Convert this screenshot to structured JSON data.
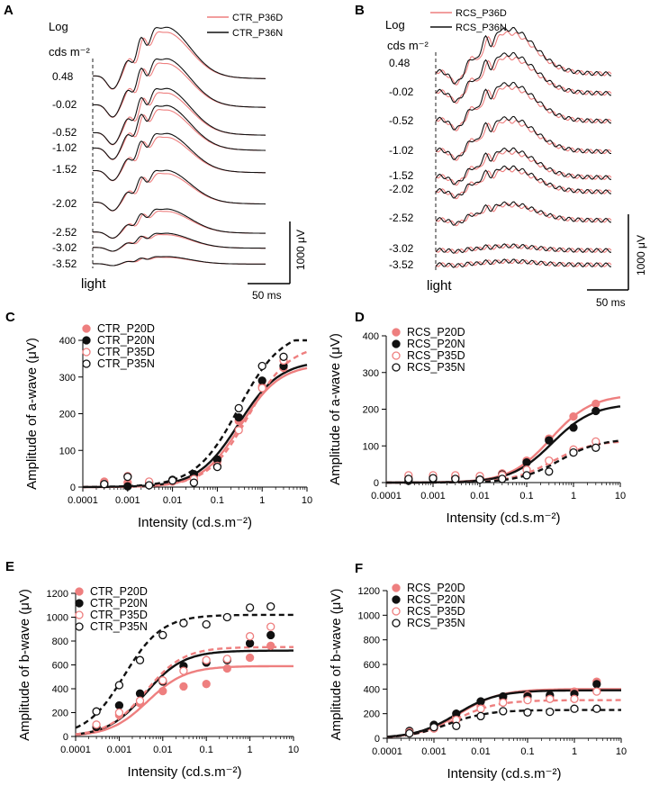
{
  "colors": {
    "pink": "#ee7f7f",
    "black": "#111111"
  },
  "trace_panels": [
    {
      "letter": "A",
      "unit_line1": "Log",
      "unit_line2": "cds m⁻²",
      "legend": [
        {
          "label": "CTR_P36D",
          "color": "#ee7f7f"
        },
        {
          "label": "CTR_P36N",
          "color": "#111111"
        }
      ],
      "levels": [
        "0.48",
        "-0.02",
        "-0.52",
        "-1.02",
        "-1.52",
        "-2.02",
        "-2.52",
        "-3.02",
        "-3.52"
      ],
      "stimulus_label": "light",
      "scale_amplitude_label": "1000 μV",
      "scale_time_label": "50 ms"
    },
    {
      "letter": "B",
      "unit_line1": "Log",
      "unit_line2": "cds m⁻²",
      "legend": [
        {
          "label": "RCS_P36D",
          "color": "#ee7f7f"
        },
        {
          "label": "RCS_P36N",
          "color": "#111111"
        }
      ],
      "levels": [
        "0.48",
        "-0.02",
        "-0.52",
        "-1.02",
        "-1.52",
        "-2.02",
        "-2.52",
        "-3.02",
        "-3.52"
      ],
      "stimulus_label": "light",
      "scale_amplitude_label": "1000 μV",
      "scale_time_label": "50 ms"
    }
  ],
  "chart_data": [
    {
      "letter": "C",
      "type": "scatter",
      "ylabel": "Amplitude of a-wave (μV)",
      "xlabel": "Intensity (cd.s.m⁻²)",
      "xscale": "log",
      "xlim": [
        0.0001,
        10
      ],
      "ylim": [
        0,
        400
      ],
      "xticks": [
        "0.0001",
        "0.001",
        "0.01",
        "0.1",
        "1",
        "10"
      ],
      "yticks": [
        0,
        100,
        200,
        300,
        400
      ],
      "x": [
        0.0003,
        0.001,
        0.003,
        0.01,
        0.03,
        0.1,
        0.3,
        1,
        3
      ],
      "series": [
        {
          "name": "CTR_P20D",
          "marker": "filled",
          "color": "#ee7f7f",
          "values": [
            15,
            12,
            10,
            18,
            30,
            70,
            180,
            275,
            325
          ],
          "fit": {
            "max": 335,
            "half": 0.33,
            "n": 1.0
          },
          "fit_style": "solid"
        },
        {
          "name": "CTR_P20N",
          "marker": "filled",
          "color": "#111111",
          "values": [
            8,
            2,
            12,
            20,
            35,
            75,
            190,
            290,
            330
          ],
          "fit": {
            "max": 345,
            "half": 0.3,
            "n": 0.95
          },
          "fit_style": "solid"
        },
        {
          "name": "CTR_P35D",
          "marker": "open",
          "color": "#ee7f7f",
          "values": [
            12,
            30,
            15,
            15,
            22,
            58,
            155,
            270,
            345
          ],
          "fit": {
            "max": 390,
            "half": 0.5,
            "n": 0.95
          },
          "fit_style": "dashed"
        },
        {
          "name": "CTR_P35N",
          "marker": "open",
          "color": "#111111",
          "values": [
            8,
            28,
            5,
            18,
            12,
            55,
            215,
            330,
            355
          ],
          "fit": {
            "max": 430,
            "half": 0.3,
            "n": 0.9
          },
          "fit_style": "dashed"
        }
      ]
    },
    {
      "letter": "D",
      "type": "scatter",
      "ylabel": "Amplitude of a-wave (μV)",
      "xlabel": "Intensity (cd.s.m⁻²)",
      "xscale": "log",
      "xlim": [
        0.0001,
        10
      ],
      "ylim": [
        0,
        400
      ],
      "xticks": [
        "0.0001",
        "0.001",
        "0.01",
        "0.1",
        "1",
        "10"
      ],
      "yticks": [
        0,
        100,
        200,
        300,
        400
      ],
      "x": [
        0.0003,
        0.001,
        0.003,
        0.01,
        0.03,
        0.1,
        0.3,
        1,
        3
      ],
      "series": [
        {
          "name": "RCS_P20D",
          "marker": "filled",
          "color": "#ee7f7f",
          "values": [
            12,
            15,
            15,
            15,
            25,
            60,
            120,
            180,
            215
          ],
          "fit": {
            "max": 240,
            "half": 0.33,
            "n": 1.0
          },
          "fit_style": "solid"
        },
        {
          "name": "RCS_P20N",
          "marker": "filled",
          "color": "#111111",
          "values": [
            5,
            10,
            12,
            12,
            22,
            55,
            115,
            150,
            195
          ],
          "fit": {
            "max": 215,
            "half": 0.35,
            "n": 1.0
          },
          "fit_style": "solid"
        },
        {
          "name": "RCS_P35D",
          "marker": "open",
          "color": "#ee7f7f",
          "values": [
            20,
            20,
            20,
            18,
            20,
            35,
            60,
            90,
            112
          ],
          "fit": {
            "max": 115,
            "half": 0.35,
            "n": 1.0
          },
          "fit_style": "dashed"
        },
        {
          "name": "RCS_P35N",
          "marker": "open",
          "color": "#111111",
          "values": [
            10,
            12,
            10,
            8,
            10,
            20,
            30,
            82,
            95
          ],
          "fit": {
            "max": 120,
            "half": 0.5,
            "n": 1.0
          },
          "fit_style": "dashed"
        }
      ]
    },
    {
      "letter": "E",
      "type": "scatter",
      "ylabel": "Amplitude of b-wave (μV)",
      "xlabel": "Intensity (cd.s.m⁻²)",
      "xscale": "log",
      "xlim": [
        0.0001,
        10
      ],
      "ylim": [
        0,
        1200
      ],
      "xticks": [
        "0.0001",
        "0.001",
        "0.01",
        "0.1",
        "1",
        "10"
      ],
      "yticks": [
        0,
        200,
        400,
        600,
        800,
        1000,
        1200
      ],
      "x": [
        0.0003,
        0.001,
        0.003,
        0.01,
        0.03,
        0.1,
        0.3,
        1,
        3
      ],
      "series": [
        {
          "name": "CTR_P20D",
          "marker": "filled",
          "color": "#ee7f7f",
          "values": [
            70,
            180,
            280,
            380,
            420,
            440,
            570,
            660,
            760
          ],
          "fit": {
            "max": 590,
            "half": 0.0045,
            "n": 1.0
          },
          "fit_style": "solid"
        },
        {
          "name": "CTR_P20N",
          "marker": "filled",
          "color": "#111111",
          "values": [
            80,
            260,
            360,
            460,
            590,
            620,
            640,
            780,
            850
          ],
          "fit": {
            "max": 720,
            "half": 0.004,
            "n": 1.0
          },
          "fit_style": "solid"
        },
        {
          "name": "CTR_P35D",
          "marker": "open",
          "color": "#ee7f7f",
          "values": [
            100,
            200,
            300,
            470,
            550,
            640,
            650,
            840,
            920
          ],
          "fit": {
            "max": 750,
            "half": 0.004,
            "n": 1.0
          },
          "fit_style": "dashed"
        },
        {
          "name": "CTR_P35N",
          "marker": "open",
          "color": "#111111",
          "values": [
            210,
            430,
            640,
            850,
            950,
            940,
            1000,
            1080,
            1090
          ],
          "fit": {
            "max": 1020,
            "half": 0.0013,
            "n": 1.0
          },
          "fit_style": "dashed"
        }
      ]
    },
    {
      "letter": "F",
      "type": "scatter",
      "ylabel": "Amplitude of b-wave (μV)",
      "xlabel": "Intensity (cd.s.m⁻²)",
      "xscale": "log",
      "xlim": [
        0.0001,
        10
      ],
      "ylim": [
        0,
        1200
      ],
      "xticks": [
        "0.0001",
        "0.001",
        "0.01",
        "0.1",
        "1",
        "10"
      ],
      "yticks": [
        0,
        200,
        400,
        600,
        800,
        1000,
        1200
      ],
      "x": [
        0.0003,
        0.001,
        0.003,
        0.01,
        0.03,
        0.1,
        0.3,
        1,
        3
      ],
      "series": [
        {
          "name": "RCS_P20D",
          "marker": "filled",
          "color": "#ee7f7f",
          "values": [
            40,
            80,
            170,
            260,
            320,
            350,
            330,
            380,
            460
          ],
          "fit": {
            "max": 400,
            "half": 0.0035,
            "n": 1.0
          },
          "fit_style": "solid"
        },
        {
          "name": "RCS_P20N",
          "marker": "filled",
          "color": "#111111",
          "values": [
            60,
            110,
            200,
            300,
            340,
            340,
            350,
            360,
            440
          ],
          "fit": {
            "max": 390,
            "half": 0.003,
            "n": 1.0
          },
          "fit_style": "solid"
        },
        {
          "name": "RCS_P35D",
          "marker": "open",
          "color": "#ee7f7f",
          "values": [
            50,
            80,
            150,
            240,
            290,
            310,
            320,
            320,
            380
          ],
          "fit": {
            "max": 310,
            "half": 0.003,
            "n": 1.0
          },
          "fit_style": "dashed"
        },
        {
          "name": "RCS_P35N",
          "marker": "open",
          "color": "#111111",
          "values": [
            40,
            90,
            100,
            180,
            220,
            210,
            215,
            240,
            240
          ],
          "fit": {
            "max": 230,
            "half": 0.002,
            "n": 1.0
          },
          "fit_style": "dashed"
        }
      ]
    }
  ]
}
